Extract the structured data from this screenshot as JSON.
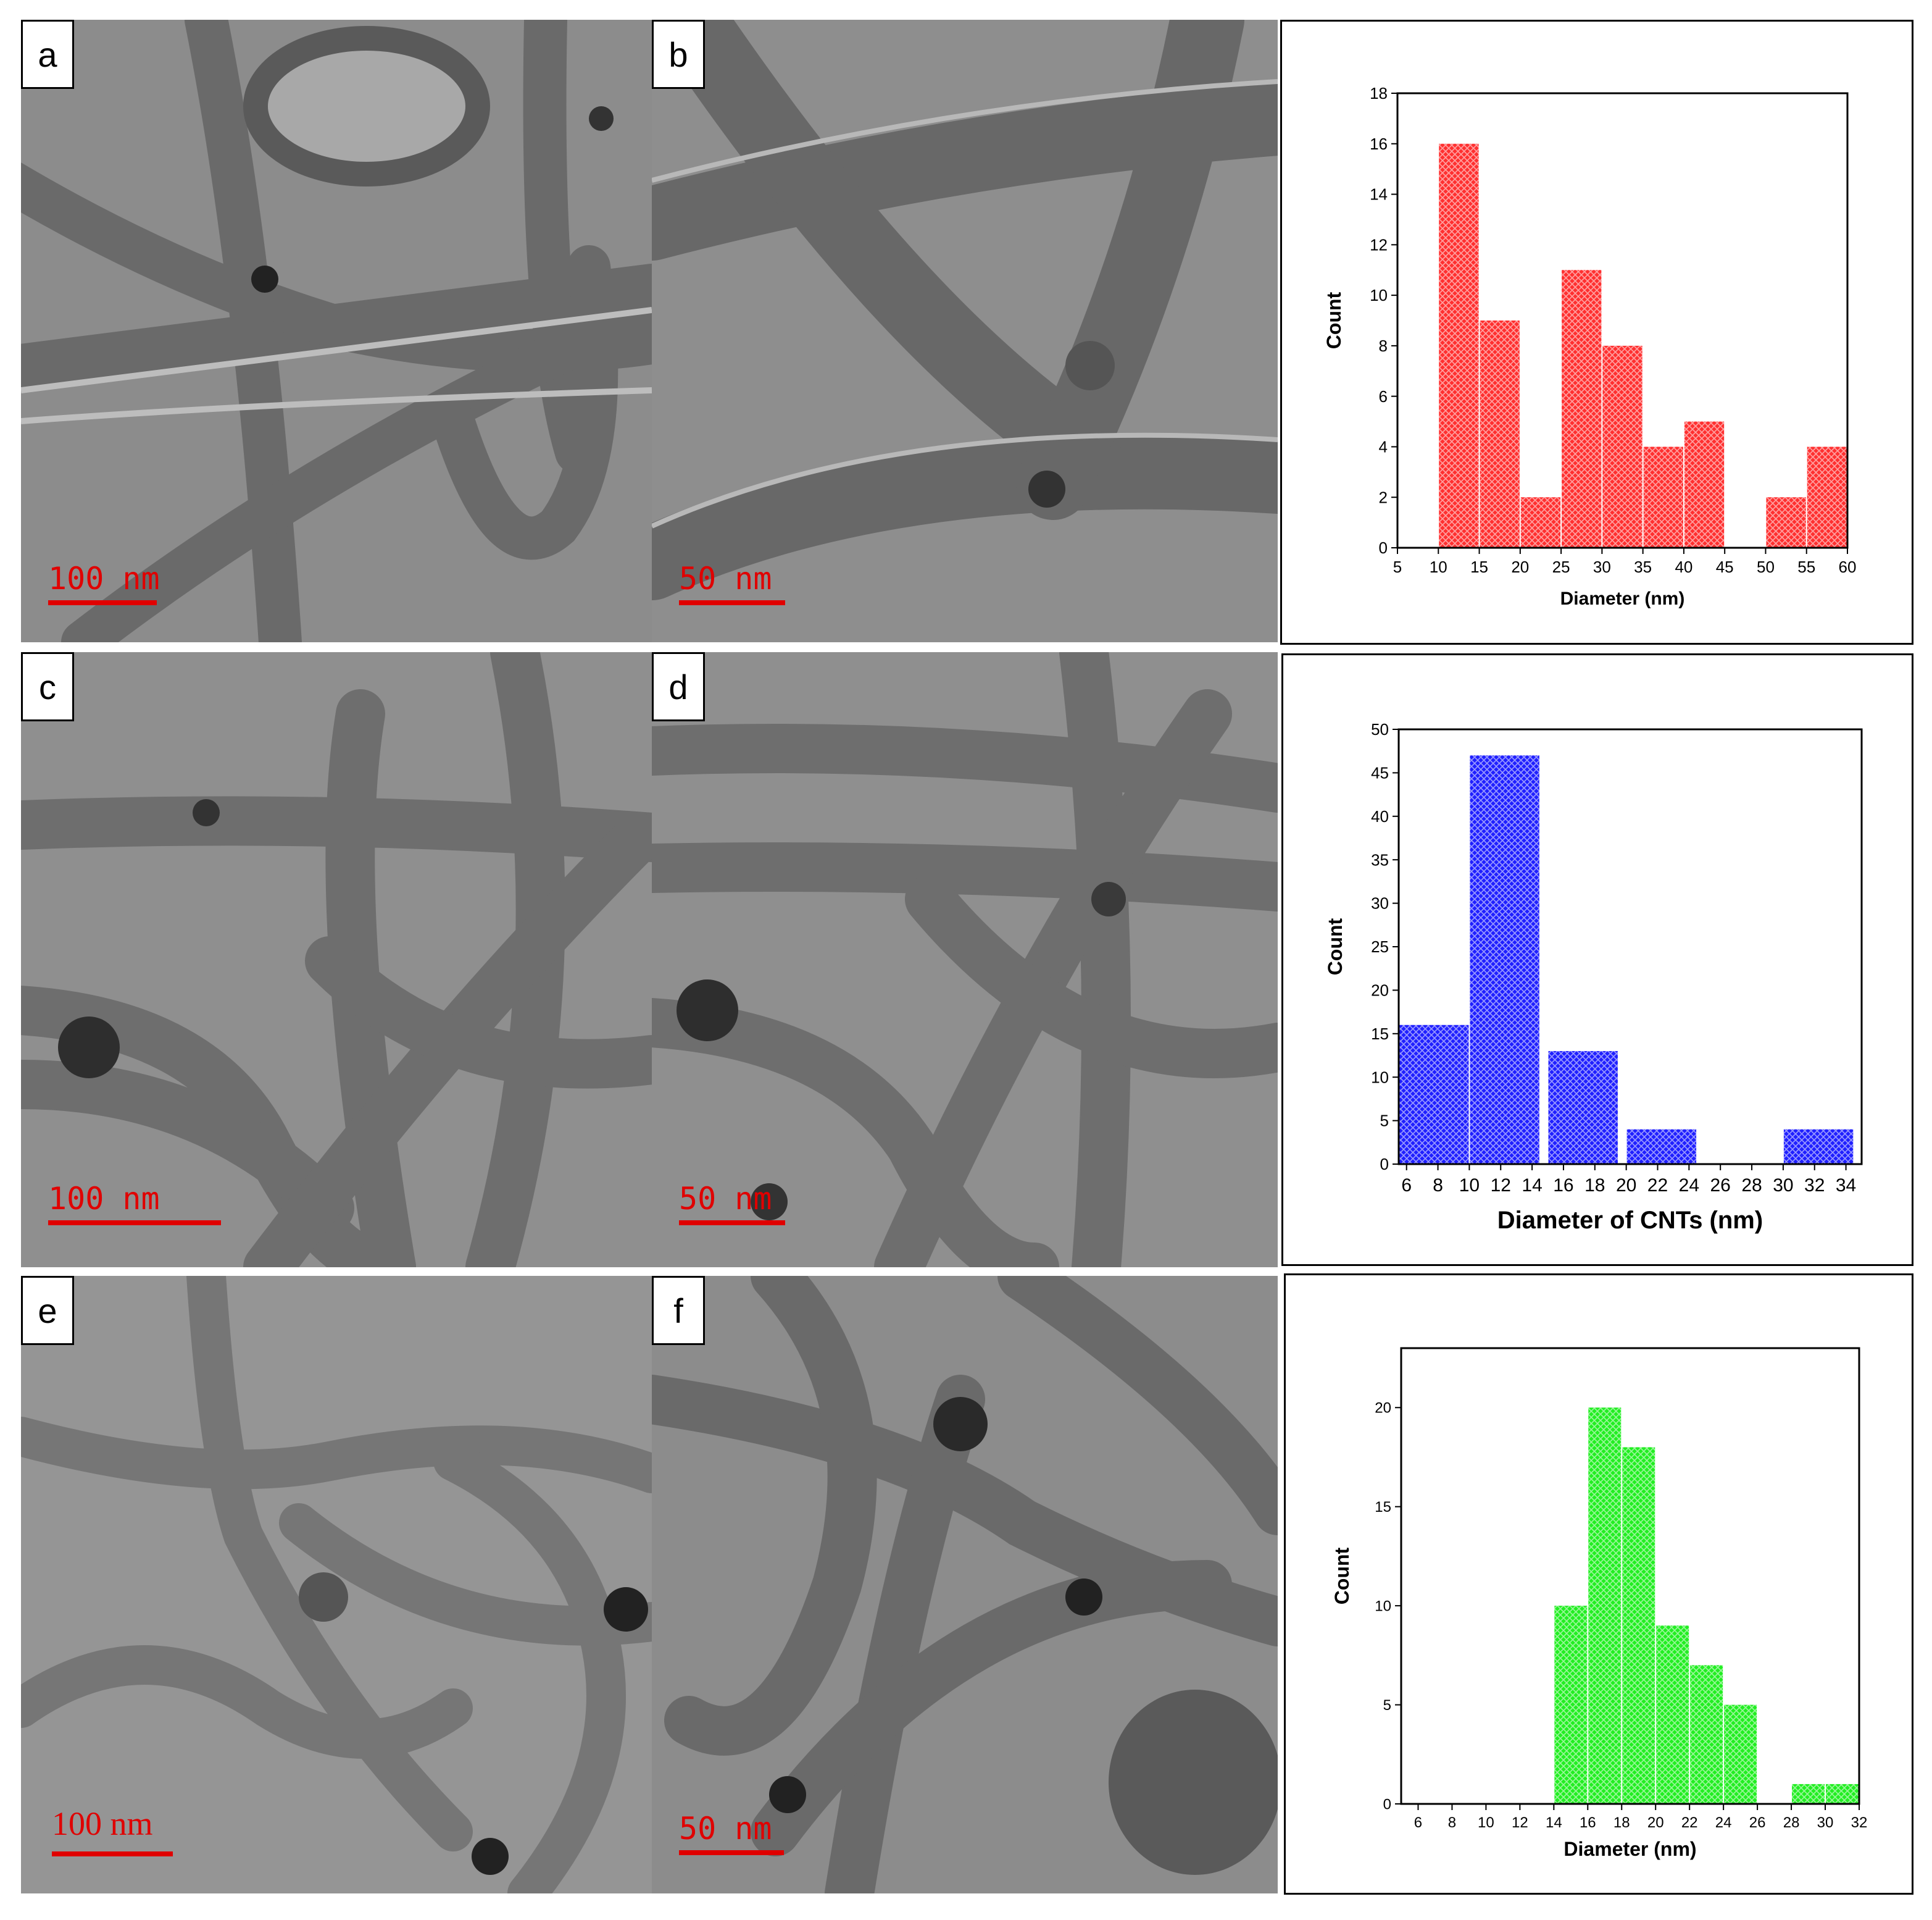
{
  "figure": {
    "panels": [
      {
        "id": "a",
        "label": "a",
        "scale_text": "100 nm"
      },
      {
        "id": "b",
        "label": "b",
        "scale_text": "50 nm"
      },
      {
        "id": "c",
        "label": "c",
        "scale_text": "100 nm"
      },
      {
        "id": "d",
        "label": "d",
        "scale_text": "50 nm"
      },
      {
        "id": "e",
        "label": "e",
        "scale_text": "100 nm"
      },
      {
        "id": "f",
        "label": "f",
        "scale_text": "50 nm"
      }
    ]
  },
  "colors": {
    "red": "#ff3030",
    "blue": "#2020ff",
    "green": "#22ee22",
    "scale": "#e00000"
  },
  "chart_data": [
    {
      "type": "bar",
      "xlabel": "Diameter (nm)",
      "ylabel": "Count",
      "xlim": [
        5,
        60
      ],
      "ylim": [
        0,
        18
      ],
      "xticks": [
        5,
        10,
        15,
        20,
        25,
        30,
        35,
        40,
        45,
        50,
        55,
        60
      ],
      "yticks": [
        0,
        2,
        4,
        6,
        8,
        10,
        12,
        14,
        16,
        18
      ],
      "bins": [
        [
          10,
          15
        ],
        [
          15,
          20
        ],
        [
          20,
          25
        ],
        [
          25,
          30
        ],
        [
          30,
          35
        ],
        [
          35,
          40
        ],
        [
          40,
          45
        ],
        [
          45,
          50
        ],
        [
          50,
          55
        ],
        [
          55,
          60
        ]
      ],
      "values": [
        16,
        9,
        2,
        11,
        8,
        4,
        5,
        0,
        2,
        4
      ],
      "color": "#ff3030"
    },
    {
      "type": "bar",
      "xlabel": "Diameter of CNTs (nm)",
      "ylabel": "Count",
      "xlim": [
        5.5,
        35
      ],
      "ylim": [
        0,
        50
      ],
      "xticks": [
        6,
        8,
        10,
        12,
        14,
        16,
        18,
        20,
        22,
        24,
        26,
        28,
        30,
        32,
        34
      ],
      "yticks": [
        0,
        5,
        10,
        15,
        20,
        25,
        30,
        35,
        40,
        45,
        50
      ],
      "bins": [
        [
          5.5,
          10
        ],
        [
          10,
          14.5
        ],
        [
          15,
          19.5
        ],
        [
          20,
          24.5
        ],
        [
          25,
          29.5
        ],
        [
          30,
          34.5
        ]
      ],
      "values": [
        16,
        47,
        13,
        4,
        0,
        4
      ],
      "color": "#2020ff"
    },
    {
      "type": "bar",
      "xlabel": "Diameter (nm)",
      "ylabel": "Count",
      "xlim": [
        5,
        32
      ],
      "ylim": [
        0,
        23
      ],
      "xticks": [
        6,
        8,
        10,
        12,
        14,
        16,
        18,
        20,
        22,
        24,
        26,
        28,
        30,
        32
      ],
      "yticks": [
        0,
        5,
        10,
        15,
        20
      ],
      "bins": [
        [
          14,
          16
        ],
        [
          16,
          18
        ],
        [
          18,
          20
        ],
        [
          20,
          22
        ],
        [
          22,
          24
        ],
        [
          24,
          26
        ],
        [
          26,
          28
        ],
        [
          28,
          30
        ],
        [
          30,
          32
        ]
      ],
      "values": [
        10,
        20,
        18,
        9,
        7,
        5,
        0,
        1,
        1
      ],
      "color": "#22ee22"
    }
  ]
}
